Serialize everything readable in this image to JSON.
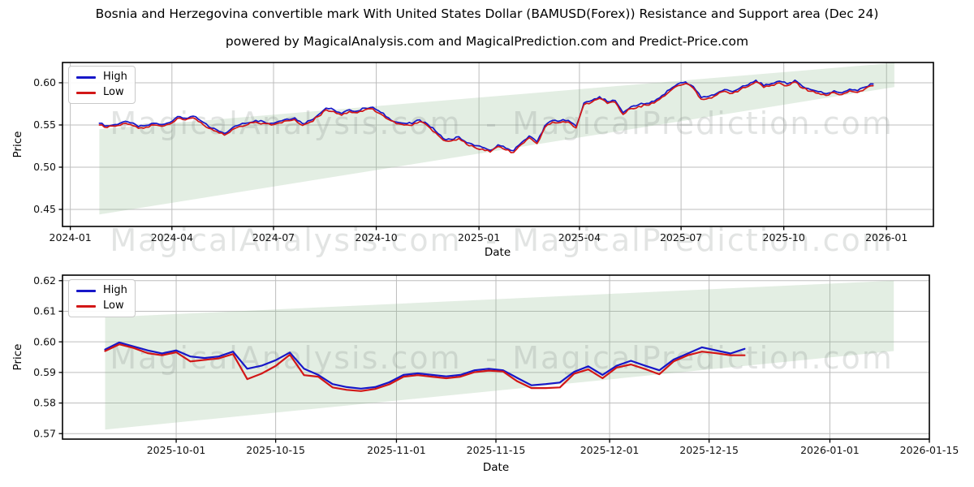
{
  "figure": {
    "title": "Bosnia and Herzegovina convertible mark With United States Dollar (BAMUSD(Forex)) Resistance and Support area (Dec 24)",
    "subtitle": "powered by MagicalAnalysis.com and MagicalPrediction.com and Predict-Price.com"
  },
  "legend": {
    "high_label": "High",
    "low_label": "Low"
  },
  "watermark": {
    "left_text": "MagicalAnalysis.com",
    "separator": "-",
    "right_text": "MagicalPrediction.com"
  },
  "colors": {
    "high": "#1717c8",
    "low": "#d21717",
    "band": "rgba(144,188,144,0.25)",
    "grid": "#bdbdbd",
    "spine": "#000000",
    "tick_label": "#111111",
    "watermark": "rgba(125,130,128,0.22)"
  },
  "chart_data": [
    {
      "type": "line",
      "xlabel": "Date",
      "ylabel": "Price",
      "grid": true,
      "legend_position": "upper left",
      "xlim": [
        "2023-12-25",
        "2026-02-12"
      ],
      "ylim": [
        0.4298,
        0.624
      ],
      "x_ticks": [
        {
          "label": "2024-01",
          "date": "2024-01-01"
        },
        {
          "label": "2024-04",
          "date": "2024-04-01"
        },
        {
          "label": "2024-07",
          "date": "2024-07-01"
        },
        {
          "label": "2024-10",
          "date": "2024-10-01"
        },
        {
          "label": "2025-01",
          "date": "2025-01-01"
        },
        {
          "label": "2025-04",
          "date": "2025-04-01"
        },
        {
          "label": "2025-07",
          "date": "2025-07-01"
        },
        {
          "label": "2025-10",
          "date": "2025-10-01"
        },
        {
          "label": "2026-01",
          "date": "2026-01-01"
        }
      ],
      "y_ticks": [
        {
          "label": "0.45",
          "value": 0.45
        },
        {
          "label": "0.50",
          "value": 0.5
        },
        {
          "label": "0.55",
          "value": 0.55
        },
        {
          "label": "0.60",
          "value": 0.6
        }
      ],
      "band": {
        "name": "Resistance and Support area",
        "x": [
          "2024-01-27",
          "2026-01-08"
        ],
        "top": [
          0.545,
          0.6235
        ],
        "bottom": [
          0.444,
          0.595
        ]
      },
      "series": [
        {
          "name": "High",
          "start_date": "2024-01-27",
          "step_days": 7,
          "values": [
            0.552,
            0.549,
            0.5505,
            0.5535,
            0.5525,
            0.548,
            0.5495,
            0.552,
            0.5505,
            0.553,
            0.56,
            0.558,
            0.5605,
            0.555,
            0.548,
            0.5445,
            0.54,
            0.5465,
            0.5505,
            0.5525,
            0.5555,
            0.554,
            0.552,
            0.5545,
            0.557,
            0.5585,
            0.5515,
            0.5555,
            0.562,
            0.57,
            0.568,
            0.5635,
            0.568,
            0.5665,
            0.57,
            0.571,
            0.565,
            0.5585,
            0.5535,
            0.552,
            0.5515,
            0.556,
            0.551,
            0.543,
            0.534,
            0.533,
            0.536,
            0.529,
            0.5255,
            0.5235,
            0.52,
            0.5265,
            0.5225,
            0.5195,
            0.529,
            0.537,
            0.53,
            0.549,
            0.5555,
            0.555,
            0.5555,
            0.5485,
            0.576,
            0.579,
            0.5835,
            0.5775,
            0.579,
            0.5645,
            0.5715,
            0.574,
            0.5755,
            0.578,
            0.585,
            0.592,
            0.5985,
            0.601,
            0.5955,
            0.5825,
            0.584,
            0.5875,
            0.592,
            0.5895,
            0.594,
            0.5975,
            0.603,
            0.5965,
            0.599,
            0.602,
            0.5985,
            0.603,
            0.5955,
            0.592,
            0.5895,
            0.587,
            0.5905,
            0.588,
            0.5925,
            0.5905,
            0.595,
            0.5985
          ]
        },
        {
          "name": "Low",
          "start_date": "2024-01-27",
          "step_days": 7,
          "values": [
            0.55,
            0.547,
            0.5485,
            0.5515,
            0.5505,
            0.546,
            0.5475,
            0.55,
            0.5485,
            0.551,
            0.558,
            0.556,
            0.5585,
            0.553,
            0.546,
            0.5425,
            0.538,
            0.5445,
            0.5485,
            0.5505,
            0.5535,
            0.552,
            0.55,
            0.5525,
            0.555,
            0.5565,
            0.5495,
            0.5535,
            0.56,
            0.568,
            0.566,
            0.5615,
            0.566,
            0.5645,
            0.568,
            0.569,
            0.563,
            0.5565,
            0.5515,
            0.55,
            0.5495,
            0.554,
            0.549,
            0.541,
            0.532,
            0.531,
            0.534,
            0.527,
            0.5235,
            0.5215,
            0.518,
            0.5245,
            0.5205,
            0.5175,
            0.527,
            0.535,
            0.528,
            0.547,
            0.5535,
            0.553,
            0.5535,
            0.5465,
            0.574,
            0.577,
            0.5815,
            0.5755,
            0.577,
            0.5625,
            0.5695,
            0.572,
            0.5735,
            0.576,
            0.583,
            0.59,
            0.5965,
            0.599,
            0.5935,
            0.5805,
            0.582,
            0.5855,
            0.59,
            0.5875,
            0.592,
            0.5955,
            0.601,
            0.5945,
            0.597,
            0.6,
            0.5965,
            0.601,
            0.5935,
            0.59,
            0.5875,
            0.585,
            0.5885,
            0.586,
            0.5905,
            0.5885,
            0.593,
            0.5965
          ]
        }
      ]
    },
    {
      "type": "line",
      "xlabel": "Date",
      "ylabel": "Price",
      "grid": true,
      "legend_position": "upper left",
      "xlim": [
        "2025-09-15",
        "2026-01-15"
      ],
      "ylim": [
        0.5682,
        0.6218
      ],
      "x_ticks": [
        {
          "label": "2025-10-01",
          "date": "2025-10-01"
        },
        {
          "label": "2025-10-15",
          "date": "2025-10-15"
        },
        {
          "label": "2025-11-01",
          "date": "2025-11-01"
        },
        {
          "label": "2025-11-15",
          "date": "2025-11-15"
        },
        {
          "label": "2025-12-01",
          "date": "2025-12-01"
        },
        {
          "label": "2025-12-15",
          "date": "2025-12-15"
        },
        {
          "label": "2026-01-01",
          "date": "2026-01-01"
        },
        {
          "label": "2026-01-15",
          "date": "2026-01-15"
        }
      ],
      "y_ticks": [
        {
          "label": "0.57",
          "value": 0.57
        },
        {
          "label": "0.58",
          "value": 0.58
        },
        {
          "label": "0.59",
          "value": 0.59
        },
        {
          "label": "0.60",
          "value": 0.6
        },
        {
          "label": "0.61",
          "value": 0.61
        },
        {
          "label": "0.62",
          "value": 0.62
        }
      ],
      "band": {
        "name": "Resistance and Support area",
        "x": [
          "2025-09-21",
          "2026-01-10"
        ],
        "top": [
          0.608,
          0.62
        ],
        "bottom": [
          0.5713,
          0.597
        ]
      },
      "series": [
        {
          "name": "High",
          "start_date": "2025-09-21",
          "step_days": 2,
          "values": [
            0.5975,
            0.5998,
            0.5985,
            0.5972,
            0.5962,
            0.5972,
            0.5952,
            0.5947,
            0.5952,
            0.5968,
            0.5912,
            0.5922,
            0.594,
            0.5965,
            0.5912,
            0.5892,
            0.5862,
            0.5852,
            0.5847,
            0.5852,
            0.5868,
            0.5892,
            0.5897,
            0.5892,
            0.5887,
            0.5892,
            0.5907,
            0.5912,
            0.5907,
            0.5882,
            0.5858,
            0.5862,
            0.5867,
            0.5902,
            0.592,
            0.5892,
            0.5922,
            0.5938,
            0.5922,
            0.5907,
            0.5942,
            0.5962,
            0.5982,
            0.5972,
            0.5962,
            0.5977
          ]
        },
        {
          "name": "Low",
          "start_date": "2025-09-21",
          "step_days": 2,
          "values": [
            0.597,
            0.5992,
            0.598,
            0.5963,
            0.5956,
            0.5966,
            0.5936,
            0.5941,
            0.5946,
            0.596,
            0.5878,
            0.5896,
            0.5921,
            0.5958,
            0.5891,
            0.5886,
            0.5851,
            0.5843,
            0.5839,
            0.5846,
            0.5861,
            0.5886,
            0.5891,
            0.5886,
            0.5881,
            0.5886,
            0.5901,
            0.5906,
            0.5903,
            0.5871,
            0.5849,
            0.5849,
            0.5851,
            0.5896,
            0.591,
            0.5881,
            0.5916,
            0.5926,
            0.5911,
            0.5894,
            0.5936,
            0.5956,
            0.5968,
            0.5963,
            0.5956,
            0.5956
          ]
        }
      ]
    }
  ]
}
